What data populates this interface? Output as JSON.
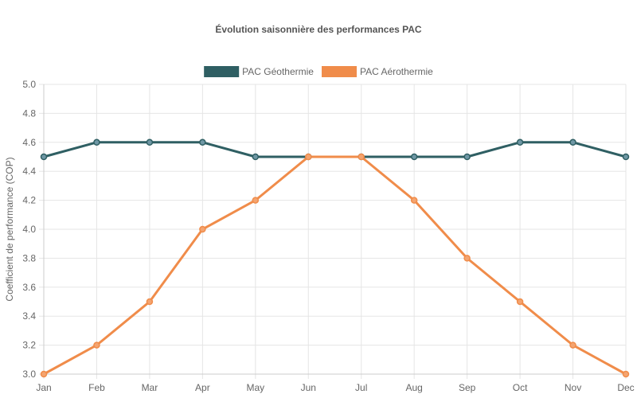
{
  "chart_data": {
    "type": "line",
    "title": "Évolution saisonnière des performances PAC",
    "xlabel": "",
    "ylabel": "Coefficient de performance (COP)",
    "categories": [
      "Jan",
      "Feb",
      "Mar",
      "Apr",
      "May",
      "Jun",
      "Jul",
      "Aug",
      "Sep",
      "Oct",
      "Nov",
      "Dec"
    ],
    "ylim": [
      3.0,
      5.0
    ],
    "yticks": [
      "3.0",
      "3.2",
      "3.4",
      "3.6",
      "3.8",
      "4.0",
      "4.2",
      "4.4",
      "4.6",
      "4.8",
      "5.0"
    ],
    "grid": true,
    "legend_position": "top-center",
    "series": [
      {
        "name": "PAC Géothermie",
        "color": "#2f5f63",
        "values": [
          4.5,
          4.6,
          4.6,
          4.6,
          4.5,
          4.5,
          4.5,
          4.5,
          4.5,
          4.6,
          4.6,
          4.5
        ]
      },
      {
        "name": "PAC Aérothermie",
        "color": "#f08c4a",
        "values": [
          3.0,
          3.2,
          3.5,
          4.0,
          4.2,
          4.5,
          4.5,
          4.2,
          3.8,
          3.5,
          3.2,
          3.0
        ]
      }
    ]
  }
}
